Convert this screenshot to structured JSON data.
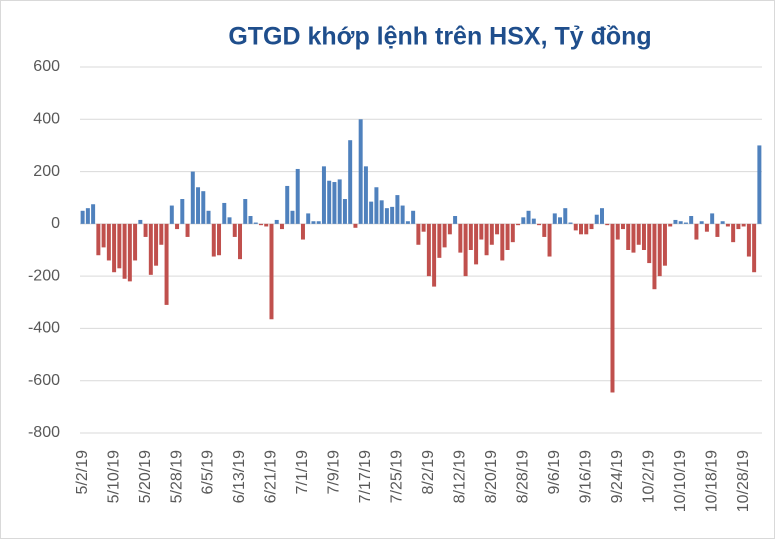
{
  "chart_data": {
    "type": "bar",
    "title": "GTGD khớp lệnh trên HSX, Tỷ đồng",
    "categories": [
      "5/2/19",
      null,
      null,
      null,
      null,
      null,
      "5/10/19",
      null,
      null,
      null,
      null,
      null,
      "5/20/19",
      null,
      null,
      null,
      null,
      null,
      "5/28/19",
      null,
      null,
      null,
      null,
      null,
      "6/5/19",
      null,
      null,
      null,
      null,
      null,
      "6/13/19",
      null,
      null,
      null,
      null,
      null,
      "6/21/19",
      null,
      null,
      null,
      null,
      null,
      "7/1/19",
      null,
      null,
      null,
      null,
      null,
      "7/9/19",
      null,
      null,
      null,
      null,
      null,
      "7/17/19",
      null,
      null,
      null,
      null,
      null,
      "7/25/19",
      null,
      null,
      null,
      null,
      null,
      "8/2/19",
      null,
      null,
      null,
      null,
      null,
      "8/12/19",
      null,
      null,
      null,
      null,
      null,
      "8/20/19",
      null,
      null,
      null,
      null,
      null,
      "8/28/19",
      null,
      null,
      null,
      null,
      null,
      "9/6/19",
      null,
      null,
      null,
      null,
      null,
      "9/16/19",
      null,
      null,
      null,
      null,
      null,
      "9/24/19",
      null,
      null,
      null,
      null,
      null,
      "10/2/19",
      null,
      null,
      null,
      null,
      null,
      "10/10/19",
      null,
      null,
      null,
      null,
      null,
      "10/18/19",
      null,
      null,
      null,
      null,
      null,
      "10/28/19",
      null,
      null,
      null
    ],
    "values": [
      50,
      60,
      75,
      -120,
      -90,
      -140,
      -185,
      -170,
      -210,
      -220,
      -140,
      15,
      -50,
      -195,
      -160,
      -80,
      -310,
      70,
      -20,
      95,
      -50,
      200,
      140,
      125,
      50,
      -125,
      -120,
      80,
      25,
      -50,
      -135,
      95,
      30,
      5,
      -5,
      -10,
      -365,
      15,
      -20,
      145,
      50,
      210,
      -60,
      40,
      10,
      10,
      220,
      165,
      160,
      170,
      95,
      320,
      -15,
      400,
      220,
      85,
      140,
      90,
      60,
      65,
      110,
      70,
      10,
      50,
      -80,
      -30,
      -200,
      -240,
      -130,
      -90,
      -40,
      30,
      -110,
      -200,
      -100,
      -155,
      -60,
      -120,
      -80,
      -40,
      -140,
      -100,
      -70,
      -5,
      25,
      50,
      20,
      -5,
      -50,
      -125,
      40,
      25,
      60,
      5,
      -25,
      -40,
      -40,
      -20,
      35,
      60,
      -5,
      -645,
      -60,
      -20,
      -100,
      -110,
      -80,
      -100,
      -150,
      -250,
      -200,
      -160,
      -10,
      15,
      10,
      5,
      30,
      -60,
      10,
      -30,
      40,
      -50,
      10,
      -10,
      -70,
      -20,
      -10,
      -125,
      -185,
      300
    ],
    "positive_color": "#4f81bd",
    "negative_color": "#c0504d",
    "ylim": [
      -800,
      600
    ],
    "yticks": [
      -800,
      -600,
      -400,
      -200,
      0,
      200,
      400,
      600
    ],
    "grid": true
  }
}
